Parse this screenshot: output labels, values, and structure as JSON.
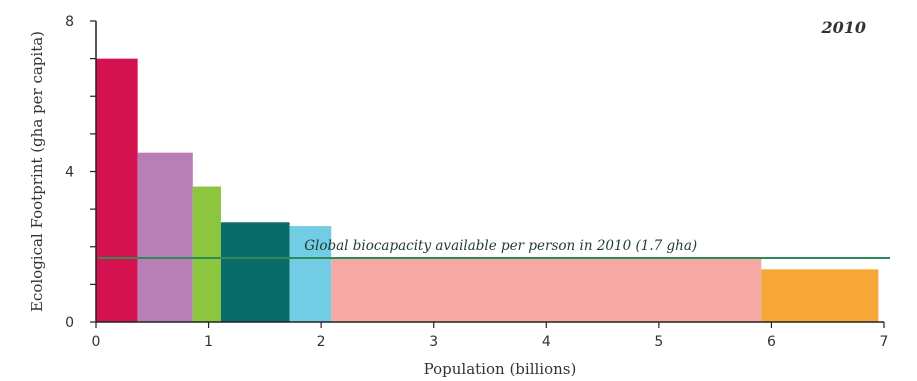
{
  "chart_data": {
    "type": "bar",
    "year_label": "2010",
    "xlabel": "Population (billions)",
    "ylabel": "Ecological Footprint (gha per capita)",
    "xlim": [
      0,
      7
    ],
    "ylim": [
      0,
      8
    ],
    "x_ticks": [
      "0",
      "1",
      "2",
      "3",
      "4",
      "5",
      "6",
      "7"
    ],
    "y_ticks": [
      "0",
      "4",
      "8"
    ],
    "y_tick_values": [
      0,
      4,
      8
    ],
    "bars": [
      {
        "x_start": 0.0,
        "x_end": 0.37,
        "value": 7.0,
        "color": "#d4124f"
      },
      {
        "x_start": 0.37,
        "x_end": 0.86,
        "value": 4.5,
        "color": "#b77fb6"
      },
      {
        "x_start": 0.86,
        "x_end": 1.11,
        "value": 3.6,
        "color": "#8cc63e"
      },
      {
        "x_start": 1.11,
        "x_end": 1.72,
        "value": 2.65,
        "color": "#0a6b6b"
      },
      {
        "x_start": 1.72,
        "x_end": 2.09,
        "value": 2.55,
        "color": "#72cde4"
      },
      {
        "x_start": 2.09,
        "x_end": 5.91,
        "value": 1.7,
        "color": "#f6a9a3"
      },
      {
        "x_start": 5.91,
        "x_end": 6.95,
        "value": 1.4,
        "color": "#f7a737"
      }
    ],
    "reference_line": {
      "value": 1.7,
      "label": "Global biocapacity available per person in 2010 (1.7 gha)",
      "color": "#2e8b57"
    }
  }
}
